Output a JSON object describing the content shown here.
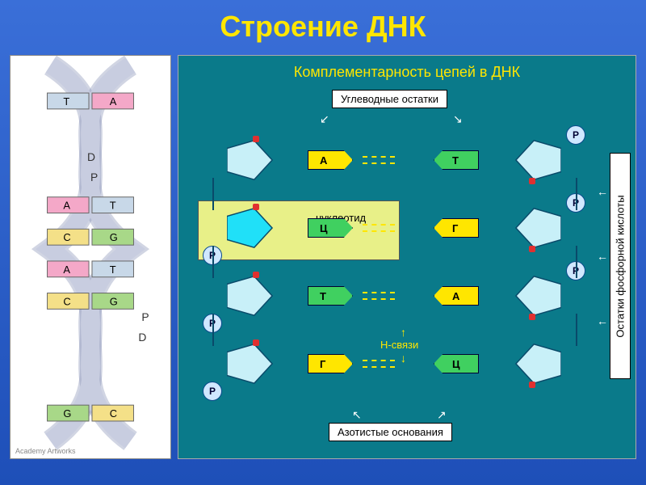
{
  "title": "Строение ДНК",
  "helix": {
    "credit": "Academy Artworks",
    "rungs": [
      {
        "left": "T",
        "right": "A",
        "lc": "#c8d8e8",
        "rc": "#f4a8c8"
      },
      {
        "left": "A",
        "right": "T",
        "lc": "#f4a8c8",
        "rc": "#c8d8e8"
      },
      {
        "left": "C",
        "right": "G",
        "lc": "#f4e088",
        "rc": "#a8d888"
      },
      {
        "left": "A",
        "right": "T",
        "lc": "#f4a8c8",
        "rc": "#c8d8e8"
      },
      {
        "left": "C",
        "right": "G",
        "lc": "#f4e088",
        "rc": "#a8d888"
      },
      {
        "left": "G",
        "right": "C",
        "lc": "#a8d888",
        "rc": "#f4e088"
      }
    ],
    "backbone_label_d": "D",
    "backbone_label_p": "P",
    "backbone_color": "#c8cde0",
    "backbone_edge": "#7a88b0"
  },
  "diagram": {
    "title": "Комплементарность цепей в ДНК",
    "label_sugar": "Углеводные остатки",
    "label_nucleotide": "нуклеотид",
    "label_hbond": "Н-связи",
    "label_bases": "Азотистые основания",
    "label_phosphate_vert": "Остатки фосфорной кислоты",
    "phosphate_letter": "Р",
    "sugar_color": "#c8f0f8",
    "sugar_hl_color": "#20e0f8",
    "sugar_stroke": "#0a4a6a",
    "hbond_color": "#ffe600",
    "background": "#0a7a8a",
    "rows": [
      {
        "left": "А",
        "right": "Т",
        "lc": "#ffe600",
        "rc": "#40d060"
      },
      {
        "left": "Ц",
        "right": "Г",
        "lc": "#40d060",
        "rc": "#ffe600",
        "highlight": true
      },
      {
        "left": "Т",
        "right": "А",
        "lc": "#40d060",
        "rc": "#ffe600"
      },
      {
        "left": "Г",
        "right": "Ц",
        "lc": "#ffe600",
        "rc": "#40d060"
      }
    ]
  }
}
